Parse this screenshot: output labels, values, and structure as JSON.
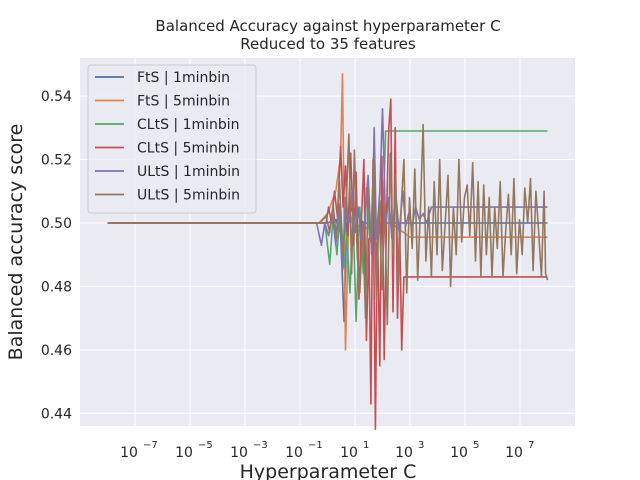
{
  "chart_data": {
    "type": "line",
    "title": "Balanced Accuracy against hyperparameter C",
    "subtitle": "Reduced to 35 features",
    "xlabel": "Hyperparameter C",
    "ylabel": "Balanced accuracy score",
    "xscale": "log",
    "xlim": [
      1e-09,
      1000000000.0
    ],
    "ylim": [
      0.436,
      0.552
    ],
    "x_tick_labels": [
      "10",
      "10",
      "10",
      "10",
      "10",
      "10",
      "10",
      "10"
    ],
    "x_tick_exponents": [
      "−7",
      "−5",
      "−3",
      "−1",
      "1",
      "3",
      "5",
      "7"
    ],
    "x_tick_values": [
      1e-07,
      1e-05,
      0.001,
      0.1,
      10.0,
      1000.0,
      100000.0,
      10000000.0
    ],
    "y_ticks": [
      0.44,
      0.46,
      0.48,
      0.5,
      0.52,
      0.54
    ],
    "y_tick_labels": [
      "0.44",
      "0.46",
      "0.48",
      "0.50",
      "0.52",
      "0.54"
    ],
    "grid": true,
    "legend_position": "top-left",
    "series": [
      {
        "name": "FtS | 1minbin",
        "color": "#4c72b0",
        "points": [
          [
            1e-08,
            0.5
          ],
          [
            0.3,
            0.5
          ],
          [
            1,
            0.5
          ],
          [
            2,
            0.501
          ],
          [
            3,
            0.497
          ],
          [
            4,
            0.469
          ],
          [
            5,
            0.5
          ],
          [
            8,
            0.505
          ],
          [
            20,
            0.5
          ],
          [
            100,
            0.5
          ],
          [
            1000.0,
            0.5
          ],
          [
            100000000.0,
            0.5
          ]
        ]
      },
      {
        "name": "FtS | 5minbin",
        "color": "#dd8452",
        "points": [
          [
            1e-08,
            0.5
          ],
          [
            0.5,
            0.5
          ],
          [
            1,
            0.503
          ],
          [
            2,
            0.51
          ],
          [
            3,
            0.521
          ],
          [
            3.5,
            0.547
          ],
          [
            4.5,
            0.46
          ],
          [
            6,
            0.505
          ],
          [
            8,
            0.5
          ],
          [
            20,
            0.498
          ],
          [
            60,
            0.5
          ],
          [
            200,
            0.5
          ],
          [
            1000.0,
            0.4955
          ],
          [
            100000000.0,
            0.4955
          ]
        ]
      },
      {
        "name": "CLtS | 1minbin",
        "color": "#55a868",
        "points": [
          [
            1e-08,
            0.5
          ],
          [
            0.5,
            0.5
          ],
          [
            0.8,
            0.5
          ],
          [
            1.2,
            0.487
          ],
          [
            1.6,
            0.502
          ],
          [
            2.2,
            0.49
          ],
          [
            3,
            0.505
          ],
          [
            4,
            0.486
          ],
          [
            5,
            0.497
          ],
          [
            6.5,
            0.478
          ],
          [
            8.5,
            0.502
          ],
          [
            11,
            0.469
          ],
          [
            15,
            0.505
          ],
          [
            20,
            0.484
          ],
          [
            26,
            0.511
          ],
          [
            34,
            0.495
          ],
          [
            45,
            0.503
          ],
          [
            60,
            0.49
          ],
          [
            80,
            0.507
          ],
          [
            100,
            0.496
          ],
          [
            130,
            0.529
          ],
          [
            100000000.0,
            0.529
          ]
        ]
      },
      {
        "name": "CLtS | 5minbin",
        "color": "#c44e52",
        "points": [
          [
            1e-08,
            0.5
          ],
          [
            0.5,
            0.5
          ],
          [
            0.9,
            0.5
          ],
          [
            1.1,
            0.505
          ],
          [
            1.4,
            0.5
          ],
          [
            1.8,
            0.51
          ],
          [
            2.3,
            0.502
          ],
          [
            3,
            0.524
          ],
          [
            3.7,
            0.505
          ],
          [
            4.5,
            0.518
          ],
          [
            5.5,
            0.496
          ],
          [
            7,
            0.522
          ],
          [
            9,
            0.493
          ],
          [
            11,
            0.516
          ],
          [
            14,
            0.476
          ],
          [
            17,
            0.5
          ],
          [
            21,
            0.52
          ],
          [
            26,
            0.463
          ],
          [
            32,
            0.495
          ],
          [
            38,
            0.443
          ],
          [
            45,
            0.52
          ],
          [
            55,
            0.435
          ],
          [
            65,
            0.5
          ],
          [
            80,
            0.455
          ],
          [
            95,
            0.521
          ],
          [
            115,
            0.457
          ],
          [
            140,
            0.502
          ],
          [
            170,
            0.53
          ],
          [
            200,
            0.539
          ],
          [
            240,
            0.472
          ],
          [
            290,
            0.53
          ],
          [
            350,
            0.47
          ],
          [
            420,
            0.5
          ],
          [
            500,
            0.46
          ],
          [
            600,
            0.483
          ],
          [
            100000000.0,
            0.483
          ]
        ]
      },
      {
        "name": "ULtS | 1minbin",
        "color": "#8172b3",
        "points": [
          [
            1e-08,
            0.5
          ],
          [
            0.4,
            0.5
          ],
          [
            0.6,
            0.493
          ],
          [
            0.8,
            0.5
          ],
          [
            1.1,
            0.496
          ],
          [
            1.5,
            0.503
          ],
          [
            2,
            0.493
          ],
          [
            2.7,
            0.506
          ],
          [
            3.5,
            0.485
          ],
          [
            4.5,
            0.508
          ],
          [
            6,
            0.5
          ],
          [
            8,
            0.51
          ],
          [
            10,
            0.497
          ],
          [
            13,
            0.505
          ],
          [
            17,
            0.494
          ],
          [
            22,
            0.5
          ],
          [
            30,
            0.515
          ],
          [
            40,
            0.49
          ],
          [
            50,
            0.53
          ],
          [
            60,
            0.495
          ],
          [
            80,
            0.51
          ],
          [
            100,
            0.536
          ],
          [
            130,
            0.499
          ],
          [
            170,
            0.508
          ],
          [
            220,
            0.495
          ],
          [
            300,
            0.51
          ],
          [
            400,
            0.497
          ],
          [
            550,
            0.51
          ],
          [
            700,
            0.499
          ],
          [
            900,
            0.503
          ],
          [
            1200,
            0.499
          ],
          [
            1600,
            0.505
          ],
          [
            2200,
            0.501
          ],
          [
            3000,
            0.503
          ],
          [
            4000,
            0.5
          ],
          [
            6000,
            0.505
          ],
          [
            100000000.0,
            0.505
          ]
        ]
      },
      {
        "name": "ULtS | 5minbin",
        "color": "#937860",
        "points": [
          [
            1e-08,
            0.5
          ],
          [
            0.5,
            0.5
          ],
          [
            0.9,
            0.502
          ],
          [
            1.2,
            0.497
          ],
          [
            1.6,
            0.506
          ],
          [
            2.1,
            0.495
          ],
          [
            2.7,
            0.514
          ],
          [
            3.5,
            0.49
          ],
          [
            4.5,
            0.5
          ],
          [
            6,
            0.528
          ],
          [
            7.5,
            0.484
          ],
          [
            9.5,
            0.523
          ],
          [
            12,
            0.49
          ],
          [
            15,
            0.478
          ],
          [
            19,
            0.5
          ],
          [
            24,
            0.47
          ],
          [
            30,
            0.511
          ],
          [
            38,
            0.494
          ],
          [
            48,
            0.521
          ],
          [
            60,
            0.476
          ],
          [
            75,
            0.505
          ],
          [
            95,
            0.479
          ],
          [
            120,
            0.506
          ],
          [
            150,
            0.468
          ],
          [
            190,
            0.522
          ],
          [
            240,
            0.49
          ],
          [
            300,
            0.515
          ],
          [
            380,
            0.48
          ],
          [
            480,
            0.505
          ],
          [
            600,
            0.52
          ],
          [
            760,
            0.478
          ],
          [
            960,
            0.508
          ],
          [
            1200,
            0.492
          ],
          [
            1500,
            0.517
          ],
          [
            1900,
            0.482
          ],
          [
            2400,
            0.505
          ],
          [
            3000,
            0.531
          ],
          [
            3800,
            0.488
          ],
          [
            4800,
            0.505
          ],
          [
            6000,
            0.483
          ],
          [
            7600,
            0.513
          ],
          [
            9600,
            0.49
          ],
          [
            12000,
            0.52
          ],
          [
            15000,
            0.485
          ],
          [
            19000,
            0.5
          ],
          [
            24000,
            0.515
          ],
          [
            30000,
            0.48
          ],
          [
            38000,
            0.505
          ],
          [
            48000,
            0.49
          ],
          [
            60000,
            0.52
          ],
          [
            76000,
            0.494
          ],
          [
            96000,
            0.508
          ],
          [
            120000,
            0.512
          ],
          [
            150000,
            0.496
          ],
          [
            190000,
            0.519
          ],
          [
            240000,
            0.488
          ],
          [
            300000,
            0.513
          ],
          [
            380000,
            0.483
          ],
          [
            480000,
            0.512
          ],
          [
            600000,
            0.49
          ],
          [
            760000,
            0.508
          ],
          [
            960000,
            0.483
          ],
          [
            1200000.0,
            0.505
          ],
          [
            1500000.0,
            0.492
          ],
          [
            1900000.0,
            0.513
          ],
          [
            2400000.0,
            0.483
          ],
          [
            3000000.0,
            0.497
          ],
          [
            3800000.0,
            0.509
          ],
          [
            4800000.0,
            0.49
          ],
          [
            6000000.0,
            0.514
          ],
          [
            7600000.0,
            0.484
          ],
          [
            9600000.0,
            0.501
          ],
          [
            12000000.0,
            0.49
          ],
          [
            15000000.0,
            0.511
          ],
          [
            19000000.0,
            0.5
          ],
          [
            24000000.0,
            0.514
          ],
          [
            30000000.0,
            0.485
          ],
          [
            38000000.0,
            0.51
          ],
          [
            48000000.0,
            0.497
          ],
          [
            60000000.0,
            0.483
          ],
          [
            75000000.0,
            0.51
          ],
          [
            85000000.0,
            0.484
          ],
          [
            100000000.0,
            0.482
          ]
        ]
      }
    ]
  }
}
